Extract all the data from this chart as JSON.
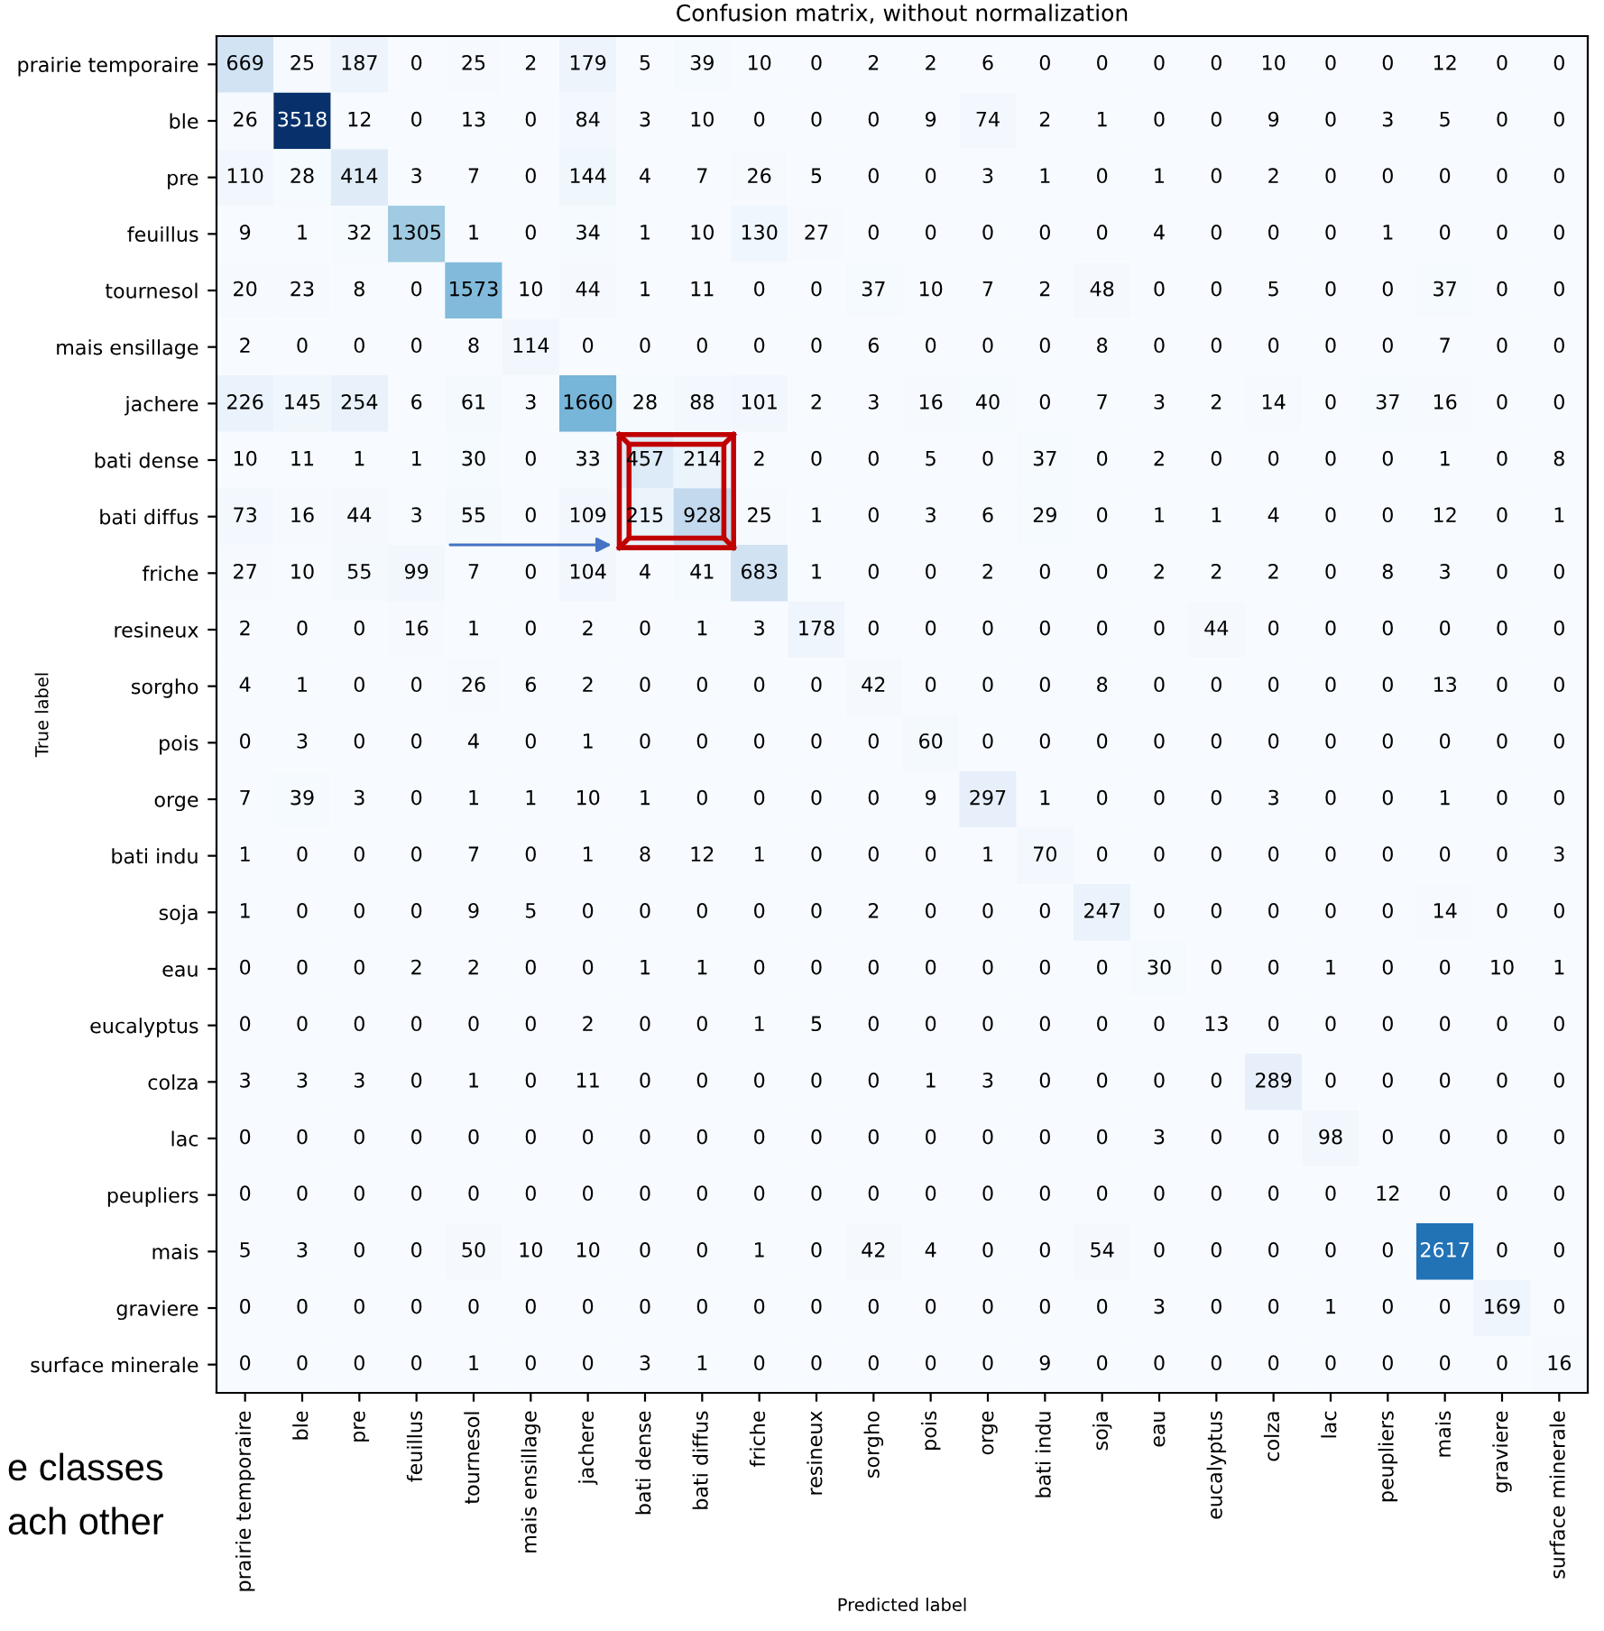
{
  "chart_data": {
    "type": "heatmap",
    "title": "Confusion matrix, without normalization",
    "xlabel": "Predicted label",
    "ylabel": "True label",
    "categories": [
      "prairie temporaire",
      "ble",
      "pre",
      "feuillus",
      "tournesol",
      "mais ensillage",
      "jachere",
      "bati dense",
      "bati diffus",
      "friche",
      "resineux",
      "sorgho",
      "pois",
      "orge",
      "bati indu",
      "soja",
      "eau",
      "eucalyptus",
      "colza",
      "lac",
      "peupliers",
      "mais",
      "graviere",
      "surface minerale"
    ],
    "y_categories": [
      "prairie temporaire",
      "ble",
      "pre",
      "feuillus",
      "tournesol",
      "mais ensillage",
      "jachere",
      "bati dense",
      "bati diffus",
      "friche",
      "resineux",
      "sorgho",
      "pois",
      "orge",
      "bati indu",
      "soja",
      "eau",
      "eucalyptus",
      "colza",
      "lac",
      "peupliers",
      "mais",
      "graviere",
      "surface minerale"
    ],
    "cells": [
      [
        669,
        25,
        187,
        0,
        25,
        2,
        179,
        5,
        39,
        10,
        0,
        2,
        2,
        6,
        0,
        0,
        0,
        0,
        10,
        0,
        0,
        12,
        0,
        0
      ],
      [
        26,
        3518,
        12,
        0,
        13,
        0,
        84,
        3,
        10,
        0,
        0,
        0,
        9,
        74,
        2,
        1,
        0,
        0,
        9,
        0,
        3,
        5,
        0,
        0
      ],
      [
        110,
        28,
        414,
        3,
        7,
        0,
        144,
        4,
        7,
        26,
        5,
        0,
        0,
        3,
        1,
        0,
        1,
        0,
        2,
        0,
        0,
        0,
        0,
        0
      ],
      [
        9,
        1,
        32,
        1305,
        1,
        0,
        34,
        1,
        10,
        130,
        27,
        0,
        0,
        0,
        0,
        0,
        4,
        0,
        0,
        0,
        1,
        0,
        0,
        0
      ],
      [
        20,
        23,
        8,
        0,
        1573,
        10,
        44,
        1,
        11,
        0,
        0,
        37,
        10,
        7,
        2,
        48,
        0,
        0,
        5,
        0,
        0,
        37,
        0,
        0
      ],
      [
        2,
        0,
        0,
        0,
        8,
        114,
        0,
        0,
        0,
        0,
        0,
        6,
        0,
        0,
        0,
        8,
        0,
        0,
        0,
        0,
        0,
        7,
        0,
        0
      ],
      [
        226,
        145,
        254,
        6,
        61,
        3,
        1660,
        28,
        88,
        101,
        2,
        3,
        16,
        40,
        0,
        7,
        3,
        2,
        14,
        0,
        37,
        16,
        0,
        0
      ],
      [
        10,
        11,
        1,
        1,
        30,
        0,
        33,
        457,
        214,
        2,
        0,
        0,
        5,
        0,
        37,
        0,
        2,
        0,
        0,
        0,
        0,
        1,
        0,
        8
      ],
      [
        73,
        16,
        44,
        3,
        55,
        0,
        109,
        215,
        928,
        25,
        1,
        0,
        3,
        6,
        29,
        0,
        1,
        1,
        4,
        0,
        0,
        12,
        0,
        1
      ],
      [
        27,
        10,
        55,
        99,
        7,
        0,
        104,
        4,
        41,
        683,
        1,
        0,
        0,
        2,
        0,
        0,
        2,
        2,
        2,
        0,
        8,
        3,
        0,
        0
      ],
      [
        2,
        0,
        0,
        16,
        1,
        0,
        2,
        0,
        1,
        3,
        178,
        0,
        0,
        0,
        0,
        0,
        0,
        44,
        0,
        0,
        0,
        0,
        0,
        0
      ],
      [
        4,
        1,
        0,
        0,
        26,
        6,
        2,
        0,
        0,
        0,
        0,
        42,
        0,
        0,
        0,
        8,
        0,
        0,
        0,
        0,
        0,
        13,
        0,
        0
      ],
      [
        0,
        3,
        0,
        0,
        4,
        0,
        1,
        0,
        0,
        0,
        0,
        0,
        60,
        0,
        0,
        0,
        0,
        0,
        0,
        0,
        0,
        0,
        0,
        0
      ],
      [
        7,
        39,
        3,
        0,
        1,
        1,
        10,
        1,
        0,
        0,
        0,
        0,
        9,
        297,
        1,
        0,
        0,
        0,
        3,
        0,
        0,
        1,
        0,
        0
      ],
      [
        1,
        0,
        0,
        0,
        7,
        0,
        1,
        8,
        12,
        1,
        0,
        0,
        0,
        1,
        70,
        0,
        0,
        0,
        0,
        0,
        0,
        0,
        0,
        3
      ],
      [
        1,
        0,
        0,
        0,
        9,
        5,
        0,
        0,
        0,
        0,
        0,
        2,
        0,
        0,
        0,
        247,
        0,
        0,
        0,
        0,
        0,
        14,
        0,
        0
      ],
      [
        0,
        0,
        0,
        2,
        2,
        0,
        0,
        1,
        1,
        0,
        0,
        0,
        0,
        0,
        0,
        0,
        30,
        0,
        0,
        1,
        0,
        0,
        10,
        1
      ],
      [
        0,
        0,
        0,
        0,
        0,
        0,
        2,
        0,
        0,
        1,
        5,
        0,
        0,
        0,
        0,
        0,
        0,
        13,
        0,
        0,
        0,
        0,
        0,
        0
      ],
      [
        3,
        3,
        3,
        0,
        1,
        0,
        11,
        0,
        0,
        0,
        0,
        0,
        1,
        3,
        0,
        0,
        0,
        0,
        289,
        0,
        0,
        0,
        0,
        0
      ],
      [
        0,
        0,
        0,
        0,
        0,
        0,
        0,
        0,
        0,
        0,
        0,
        0,
        0,
        0,
        0,
        0,
        3,
        0,
        0,
        98,
        0,
        0,
        0,
        0
      ],
      [
        0,
        0,
        0,
        0,
        0,
        0,
        0,
        0,
        0,
        0,
        0,
        0,
        0,
        0,
        0,
        0,
        0,
        0,
        0,
        0,
        12,
        0,
        0,
        0
      ],
      [
        5,
        3,
        0,
        0,
        50,
        10,
        10,
        0,
        0,
        1,
        0,
        42,
        4,
        0,
        0,
        54,
        0,
        0,
        0,
        0,
        0,
        2617,
        0,
        0
      ],
      [
        0,
        0,
        0,
        0,
        0,
        0,
        0,
        0,
        0,
        0,
        0,
        0,
        0,
        0,
        0,
        0,
        3,
        0,
        0,
        1,
        0,
        0,
        169,
        0
      ],
      [
        0,
        0,
        0,
        0,
        1,
        0,
        0,
        3,
        1,
        0,
        0,
        0,
        0,
        0,
        9,
        0,
        0,
        0,
        0,
        0,
        0,
        0,
        0,
        16
      ]
    ],
    "data_labels": true,
    "grid": false,
    "annotations": [
      "e classes",
      "ach other"
    ]
  }
}
